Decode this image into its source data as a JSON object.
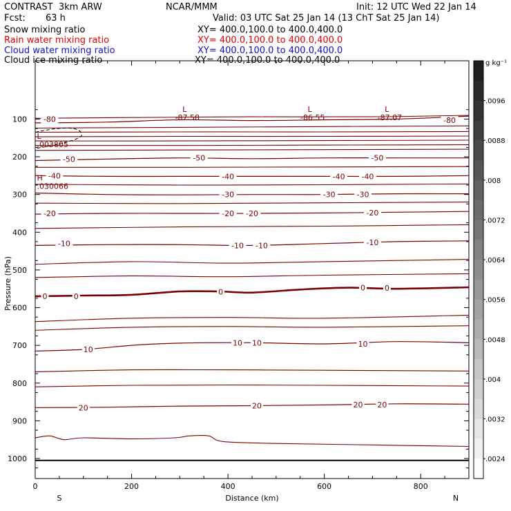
{
  "header": {
    "model": "CONTRAST  3km ARW",
    "center": "NCAR/MMM",
    "init": "Init: 12 UTC Wed 22 Jan 14",
    "fcst_label": "Fcst:",
    "fcst_value": "63 h",
    "valid": "Valid: 03 UTC Sat 25 Jan 14 (13 ChT Sat 25 Jan 14)",
    "fields": [
      {
        "name": "Snow mixing ratio",
        "xy": "XY= 400.0,100.0 to 400.0,400.0",
        "color": "#000000"
      },
      {
        "name": "Rain water mixing ratio",
        "xy": "XY= 400.0,100.0 to 400.0,400.0",
        "color": "#e00000"
      },
      {
        "name": "Cloud water mixing ratio",
        "xy": "XY= 400.0,100.0 to 400.0,400.0",
        "color": "#1010d0"
      },
      {
        "name": "Cloud ice mixing ratio",
        "xy": "XY= 400.0,100.0 to 400.0,400.0",
        "color": "#000000"
      }
    ]
  },
  "chart_data": {
    "type": "contour",
    "xlabel": "Distance (km)",
    "ylabel": "Pressure (hPa)",
    "xlim": [
      0,
      900
    ],
    "ylim": [
      1050,
      50
    ],
    "x_ticks": [
      "0",
      "200",
      "400",
      "600",
      "800"
    ],
    "y_ticks": [
      "100",
      "200",
      "300",
      "400",
      "500",
      "600",
      "700",
      "800",
      "900",
      "1000"
    ],
    "endpoint_labels": {
      "left": "S",
      "right": "N"
    },
    "surface_pressure_hpa": 1005,
    "line_color": "#7a0000",
    "contours": [
      {
        "level": -80,
        "labels": [
          {
            "x": 30,
            "p": 100,
            "text": "-80"
          },
          {
            "x": 860,
            "p": 103,
            "text": "-80"
          }
        ],
        "points": [
          [
            0,
            110
          ],
          [
            150,
            108
          ],
          [
            300,
            102
          ],
          [
            450,
            104
          ],
          [
            600,
            102
          ],
          [
            750,
            100
          ],
          [
            900,
            92
          ]
        ]
      },
      {
        "level": -50,
        "labels": [
          {
            "x": 70,
            "p": 206,
            "text": "-50"
          },
          {
            "x": 340,
            "p": 203,
            "text": "-50"
          },
          {
            "x": 710,
            "p": 203,
            "text": "-50"
          }
        ],
        "points": [
          [
            0,
            210
          ],
          [
            150,
            206
          ],
          [
            300,
            203
          ],
          [
            450,
            205
          ],
          [
            600,
            203
          ],
          [
            750,
            203
          ],
          [
            900,
            203
          ]
        ]
      },
      {
        "level": -40,
        "labels": [
          {
            "x": 40,
            "p": 250,
            "text": "-40"
          },
          {
            "x": 400,
            "p": 252,
            "text": "-40"
          },
          {
            "x": 630,
            "p": 252,
            "text": "-40"
          },
          {
            "x": 690,
            "p": 252,
            "text": "-40"
          }
        ],
        "points": [
          [
            0,
            250
          ],
          [
            150,
            252
          ],
          [
            300,
            252
          ],
          [
            450,
            252
          ],
          [
            600,
            252
          ],
          [
            750,
            252
          ],
          [
            900,
            250
          ]
        ]
      },
      {
        "level": -30,
        "labels": [
          {
            "x": 400,
            "p": 300,
            "text": "-30"
          },
          {
            "x": 610,
            "p": 300,
            "text": "-30"
          },
          {
            "x": 680,
            "p": 300,
            "text": "-30"
          }
        ],
        "points": [
          [
            0,
            296
          ],
          [
            150,
            300
          ],
          [
            300,
            301
          ],
          [
            450,
            300
          ],
          [
            600,
            300
          ],
          [
            750,
            298
          ],
          [
            900,
            298
          ]
        ]
      },
      {
        "level": -20,
        "labels": [
          {
            "x": 30,
            "p": 350,
            "text": "-20"
          },
          {
            "x": 400,
            "p": 350,
            "text": "-20"
          },
          {
            "x": 450,
            "p": 350,
            "text": "-20"
          },
          {
            "x": 700,
            "p": 348,
            "text": "-20"
          }
        ],
        "points": [
          [
            0,
            352
          ],
          [
            150,
            350
          ],
          [
            300,
            350
          ],
          [
            450,
            350
          ],
          [
            600,
            349
          ],
          [
            750,
            347
          ],
          [
            900,
            345
          ]
        ]
      },
      {
        "level": -10,
        "labels": [
          {
            "x": 60,
            "p": 430,
            "text": "-10"
          },
          {
            "x": 420,
            "p": 435,
            "text": "-10"
          },
          {
            "x": 470,
            "p": 435,
            "text": "-10"
          },
          {
            "x": 700,
            "p": 427,
            "text": "-10"
          }
        ],
        "points": [
          [
            0,
            435
          ],
          [
            150,
            433
          ],
          [
            300,
            433
          ],
          [
            450,
            435
          ],
          [
            600,
            430
          ],
          [
            750,
            425
          ],
          [
            900,
            423
          ]
        ]
      },
      {
        "level": 0,
        "bold": true,
        "labels": [
          {
            "x": 20,
            "p": 570,
            "text": "0"
          },
          {
            "x": 85,
            "p": 570,
            "text": "0"
          },
          {
            "x": 385,
            "p": 558,
            "text": "0"
          },
          {
            "x": 680,
            "p": 547,
            "text": "0"
          },
          {
            "x": 730,
            "p": 548,
            "text": "0"
          }
        ],
        "points": [
          [
            0,
            570
          ],
          [
            100,
            568
          ],
          [
            200,
            566
          ],
          [
            300,
            557
          ],
          [
            380,
            557
          ],
          [
            450,
            560
          ],
          [
            550,
            552
          ],
          [
            650,
            547
          ],
          [
            750,
            550
          ],
          [
            900,
            546
          ]
        ]
      },
      {
        "level": 10,
        "labels": [
          {
            "x": 110,
            "p": 711,
            "text": "10"
          },
          {
            "x": 420,
            "p": 693,
            "text": "10"
          },
          {
            "x": 460,
            "p": 693,
            "text": "10"
          },
          {
            "x": 680,
            "p": 696,
            "text": "10"
          }
        ],
        "points": [
          [
            0,
            715
          ],
          [
            100,
            711
          ],
          [
            200,
            700
          ],
          [
            300,
            694
          ],
          [
            450,
            693
          ],
          [
            600,
            696
          ],
          [
            750,
            690
          ],
          [
            900,
            693
          ]
        ]
      },
      {
        "level": 20,
        "labels": [
          {
            "x": 100,
            "p": 865,
            "text": "20"
          },
          {
            "x": 460,
            "p": 860,
            "text": "20"
          },
          {
            "x": 670,
            "p": 857,
            "text": "20"
          },
          {
            "x": 720,
            "p": 857,
            "text": "20"
          }
        ],
        "points": [
          [
            0,
            865
          ],
          [
            150,
            864
          ],
          [
            300,
            861
          ],
          [
            450,
            860
          ],
          [
            600,
            858
          ],
          [
            750,
            855
          ],
          [
            900,
            856
          ]
        ]
      }
    ],
    "extrema": [
      {
        "type": "L",
        "x": 310,
        "p": 88,
        "value": "-87.58"
      },
      {
        "type": "L",
        "x": 570,
        "p": 88,
        "value": "-86.55"
      },
      {
        "type": "L",
        "x": 730,
        "p": 88,
        "value": "-87.07"
      },
      {
        "type": "L",
        "x": 15,
        "p": 160,
        "value": ".003805"
      },
      {
        "type": "H",
        "x": 15,
        "p": 270,
        "value": ".030066"
      }
    ],
    "colorbar": {
      "unit": "g kg⁻¹",
      "tick_labels": [
        ".0096",
        ".0088",
        ".008",
        ".0072",
        ".0064",
        ".0056",
        ".0048",
        ".004",
        ".0032",
        ".0024"
      ]
    }
  }
}
